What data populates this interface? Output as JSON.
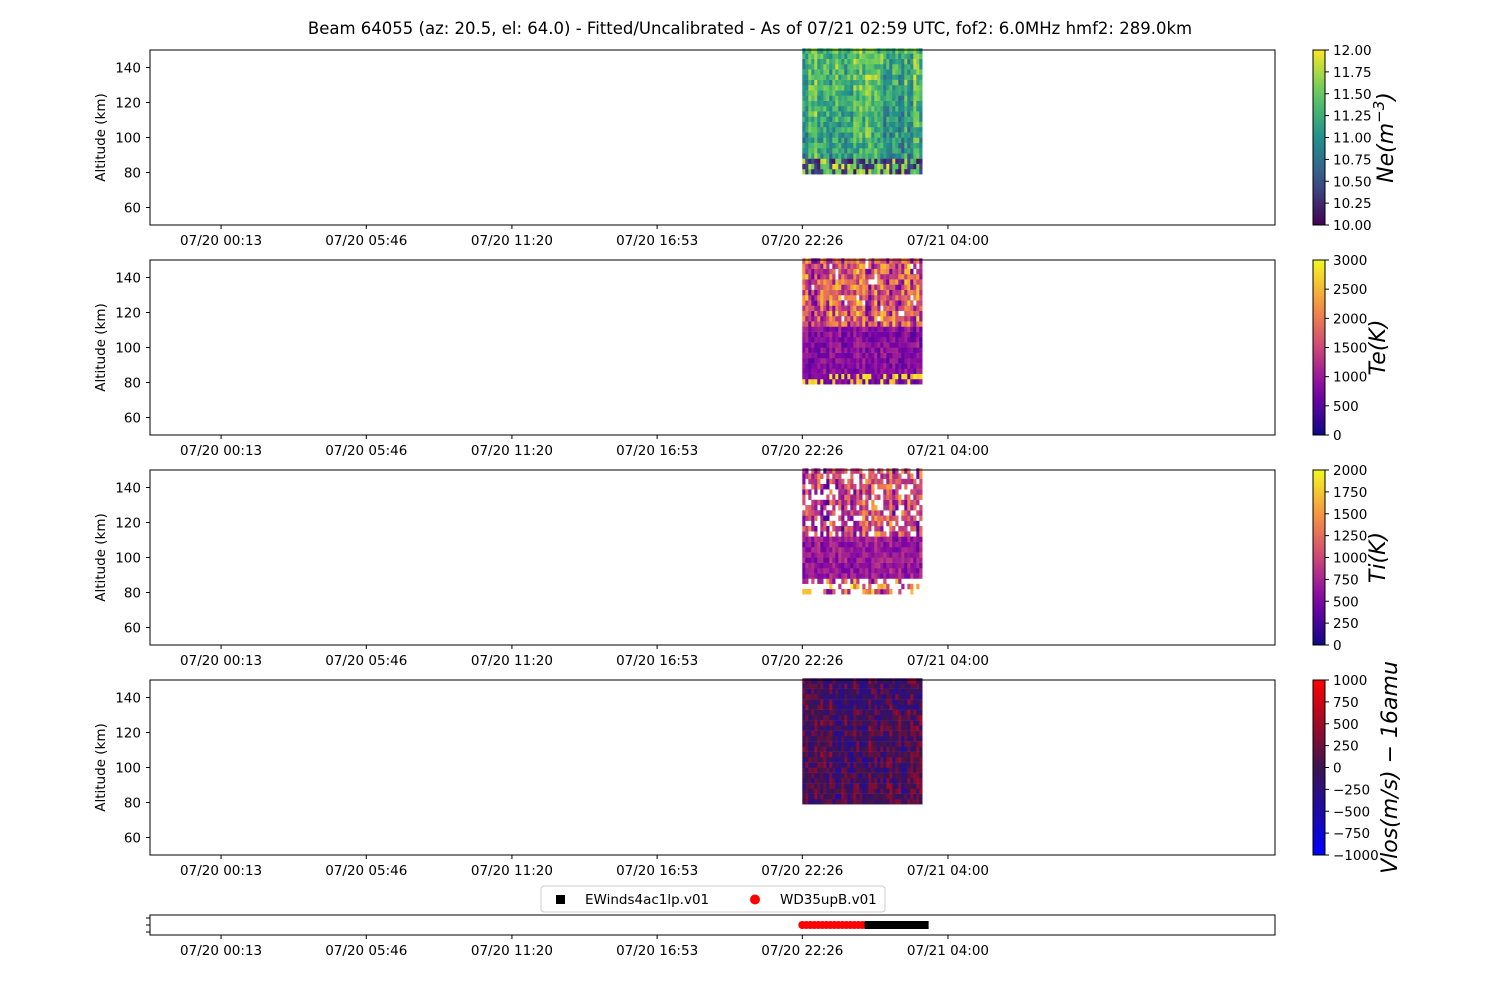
{
  "title": "Beam 64055 (az: 20.5, el: 64.0) - Fitted/Uncalibrated - As of 07/21 02:59 UTC, fof2: 6.0MHz  hmf2: 289.0km",
  "time_tick_labels": [
    "07/20 00:13",
    "07/20 05:46",
    "07/20 11:20",
    "07/20 16:53",
    "07/20 22:26",
    "07/21 04:00"
  ],
  "ylabel": "Altitude (km)",
  "colors": {
    "timeline_wd35": "#ff0000",
    "timeline_ewinds": "#000000"
  },
  "chart_data": [
    {
      "type": "heatmap",
      "name": "Ne",
      "colorbar_label": "Ne(m^-3)",
      "colorbar_label_parts": {
        "main": "Ne(m",
        "sup": "−3",
        "close": ")"
      },
      "colormap": "viridis",
      "ylabel": "Altitude (km)",
      "ylim": [
        50,
        150
      ],
      "yticks": [
        60,
        80,
        100,
        120,
        140
      ],
      "x_ticks": [
        "07/20 00:13",
        "07/20 05:46",
        "07/20 11:20",
        "07/20 16:53",
        "07/20 22:26",
        "07/21 04:00"
      ],
      "data_time_range": [
        "07/20 22:26",
        "07/21 02:59"
      ],
      "data_alt_range": [
        79,
        150
      ],
      "clim": [
        10.0,
        12.0
      ],
      "colorbar_ticks": [
        "10.00",
        "10.25",
        "10.50",
        "10.75",
        "11.00",
        "11.25",
        "11.50",
        "11.75",
        "12.00"
      ]
    },
    {
      "type": "heatmap",
      "name": "Te",
      "colorbar_label": "Te(K)",
      "colormap": "plasma",
      "ylabel": "Altitude (km)",
      "ylim": [
        50,
        150
      ],
      "yticks": [
        60,
        80,
        100,
        120,
        140
      ],
      "x_ticks": [
        "07/20 00:13",
        "07/20 05:46",
        "07/20 11:20",
        "07/20 16:53",
        "07/20 22:26",
        "07/21 04:00"
      ],
      "data_time_range": [
        "07/20 22:26",
        "07/21 02:59"
      ],
      "data_alt_range": [
        79,
        150
      ],
      "clim": [
        0,
        3000
      ],
      "colorbar_ticks": [
        "0",
        "500",
        "1000",
        "1500",
        "2000",
        "2500",
        "3000"
      ]
    },
    {
      "type": "heatmap",
      "name": "Ti",
      "colorbar_label": "Ti(K)",
      "colormap": "plasma",
      "ylabel": "Altitude (km)",
      "ylim": [
        50,
        150
      ],
      "yticks": [
        60,
        80,
        100,
        120,
        140
      ],
      "x_ticks": [
        "07/20 00:13",
        "07/20 05:46",
        "07/20 11:20",
        "07/20 16:53",
        "07/20 22:26",
        "07/21 04:00"
      ],
      "data_time_range": [
        "07/20 22:26",
        "07/21 02:59"
      ],
      "data_alt_range": [
        79,
        150
      ],
      "clim": [
        0,
        2000
      ],
      "colorbar_ticks": [
        "0",
        "250",
        "500",
        "750",
        "1000",
        "1250",
        "1500",
        "1750",
        "2000"
      ]
    },
    {
      "type": "heatmap",
      "name": "Vlos",
      "colorbar_label": "Vlos(m/s) − 16amu",
      "colormap": "bwr-dark",
      "ylabel": "Altitude (km)",
      "ylim": [
        50,
        150
      ],
      "yticks": [
        60,
        80,
        100,
        120,
        140
      ],
      "x_ticks": [
        "07/20 00:13",
        "07/20 05:46",
        "07/20 11:20",
        "07/20 16:53",
        "07/20 22:26",
        "07/21 04:00"
      ],
      "data_time_range": [
        "07/20 22:26",
        "07/21 02:59"
      ],
      "data_alt_range": [
        79,
        150
      ],
      "clim": [
        -1000,
        1000
      ],
      "colorbar_ticks": [
        "−1000",
        "−750",
        "−500",
        "−250",
        "0",
        "250",
        "500",
        "750",
        "1000"
      ]
    },
    {
      "type": "scatter",
      "name": "mode-timeline",
      "x_ticks": [
        "07/20 00:13",
        "07/20 05:46",
        "07/20 11:20",
        "07/20 16:53",
        "07/20 22:26",
        "07/21 04:00"
      ],
      "legend_position": "top-center",
      "series": [
        {
          "name": "WD35upB.v01",
          "marker": "circle",
          "color": "#ff0000",
          "x_range": [
            "07/20 22:26",
            "07/21 00:58"
          ]
        },
        {
          "name": "EWinds4ac1lp.v01",
          "marker": "square",
          "color": "#000000",
          "x_range": [
            "07/21 00:58",
            "07/21 03:10"
          ]
        }
      ]
    }
  ]
}
